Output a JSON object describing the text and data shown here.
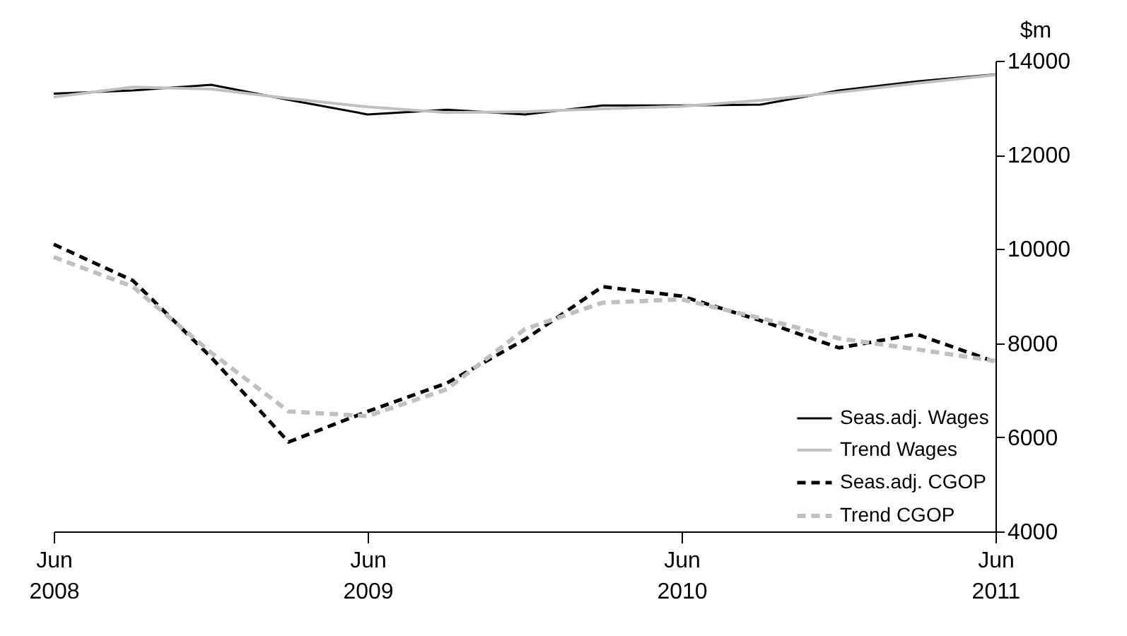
{
  "chart_data": {
    "type": "line",
    "ylabel": "$m",
    "x": [
      "2008-06",
      "2008-09",
      "2008-12",
      "2009-03",
      "2009-06",
      "2009-09",
      "2009-12",
      "2010-03",
      "2010-06",
      "2010-09",
      "2010-12",
      "2011-03",
      "2011-06"
    ],
    "series": [
      {
        "name": "Seas.adj. Wages",
        "color": "#000000",
        "line_style": "solid",
        "values": [
          13300,
          13370,
          13490,
          13170,
          12860,
          12960,
          12860,
          13050,
          13050,
          13070,
          13370,
          13560,
          13710
        ]
      },
      {
        "name": "Trend Wages",
        "color": "#c0c0c0",
        "line_style": "solid",
        "values": [
          13230,
          13440,
          13400,
          13200,
          13020,
          12900,
          12920,
          12980,
          13030,
          13160,
          13330,
          13520,
          13700
        ]
      },
      {
        "name": "Seas.adj. CGOP",
        "color": "#000000",
        "line_style": "dashed",
        "values": [
          10100,
          9330,
          7700,
          5900,
          6550,
          7150,
          8080,
          9200,
          9000,
          8480,
          7900,
          8190,
          7600
        ]
      },
      {
        "name": "Trend CGOP",
        "color": "#c0c0c0",
        "line_style": "dashed",
        "values": [
          9830,
          9200,
          7800,
          6550,
          6450,
          7020,
          8300,
          8860,
          8930,
          8530,
          8100,
          7870,
          7620
        ]
      }
    ],
    "xlim": [
      "2008-06",
      "2011-06"
    ],
    "xticks": [
      {
        "value": "2008-06",
        "label": "Jun 2008"
      },
      {
        "value": "2009-06",
        "label": "Jun 2009"
      },
      {
        "value": "2010-06",
        "label": "Jun 2010"
      },
      {
        "value": "2011-06",
        "label": "Jun 2011"
      }
    ],
    "ylim": [
      4000,
      14000
    ],
    "yticks": [
      4000,
      6000,
      8000,
      10000,
      12000,
      14000
    ],
    "grid": false,
    "legend": "bottom right"
  }
}
